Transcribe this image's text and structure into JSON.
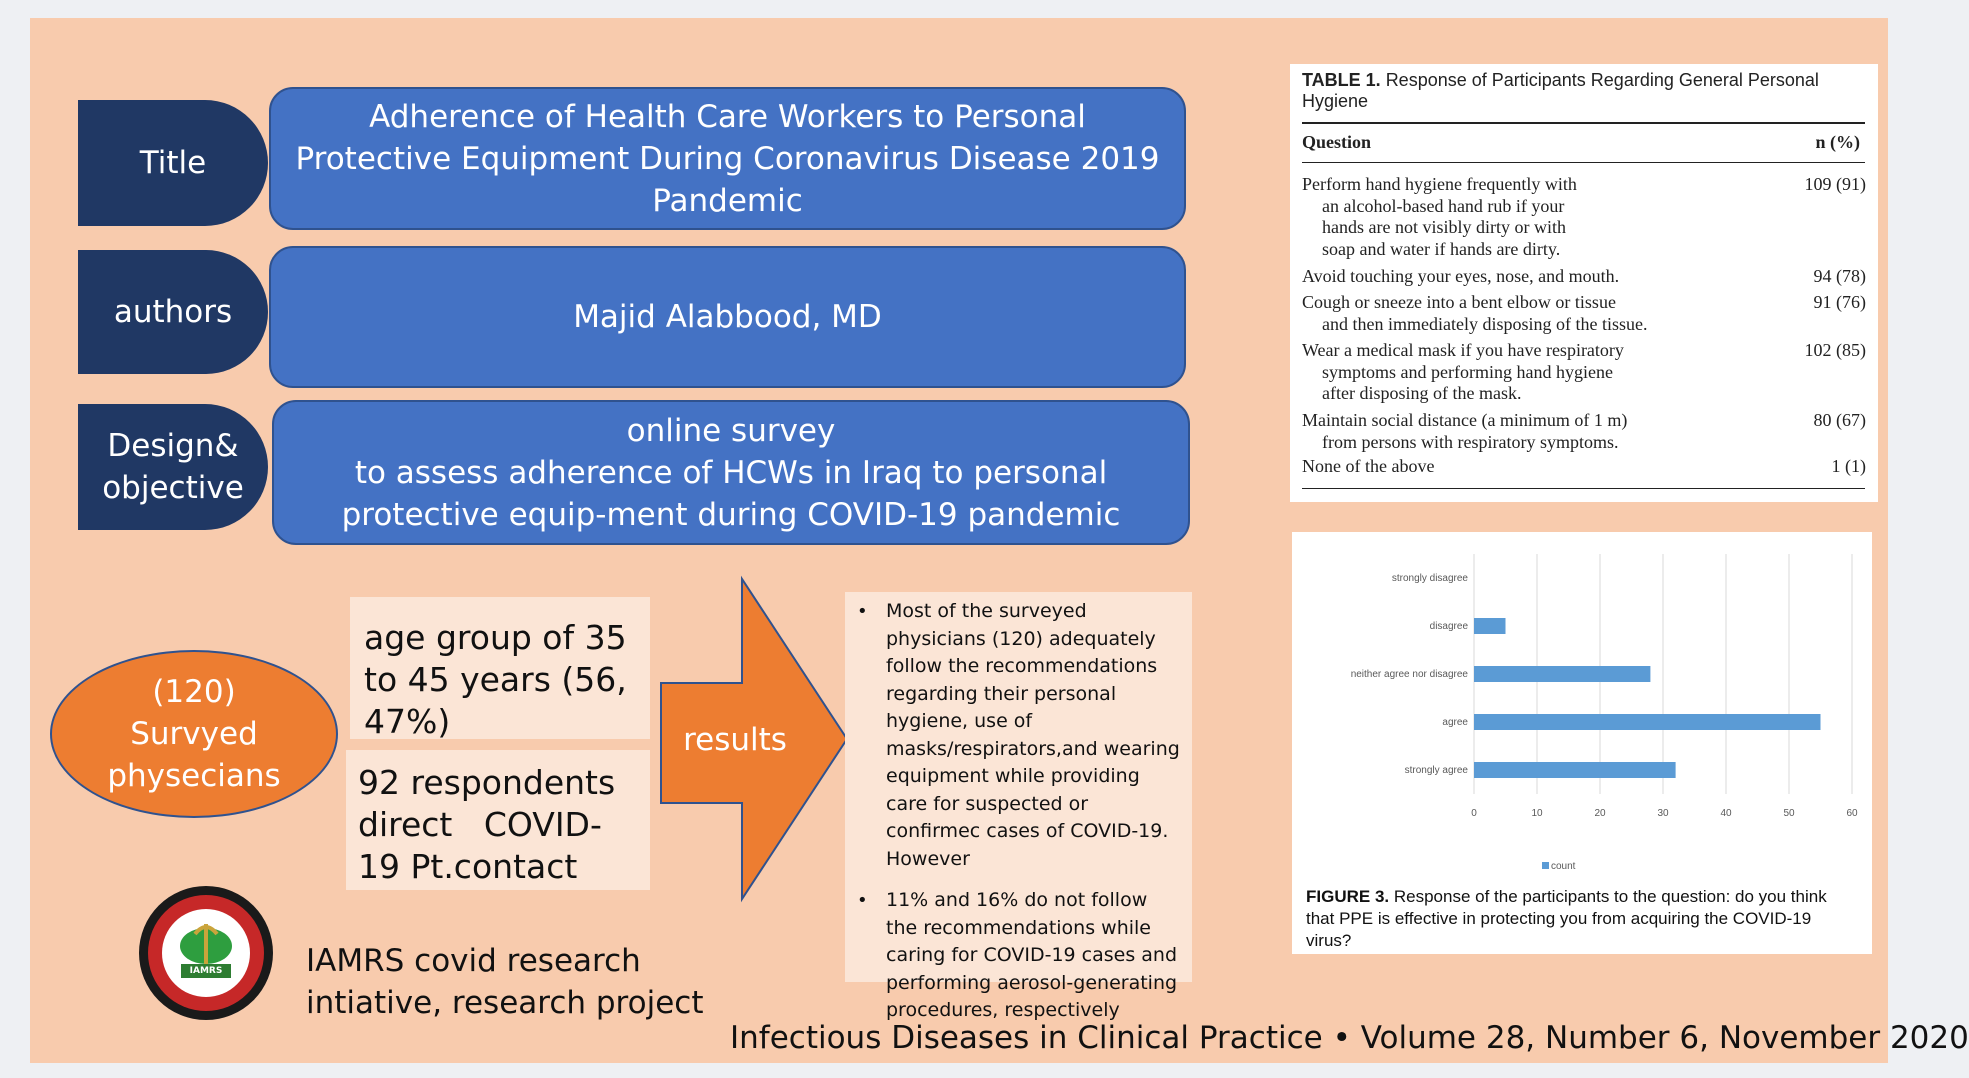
{
  "title_label": "Title",
  "title_text": "Adherence of Health Care Workers to Personal Protective Equipment During Coronavirus Disease 2019 Pandemic",
  "authors_label": "authors",
  "authors_text": "Majid Alabbood, MD",
  "design_label": "Design& objective",
  "design_line1": "online survey",
  "design_line2": "to assess adherence of HCWs in Iraq to personal protective equip-ment during COVID-19 pandemic",
  "ellipse_count": "(120)",
  "ellipse_text": "Survyed physecians",
  "age_box": "age group of 35 to 45 years (56, 47%)",
  "respondents_box": "92 respondents direct   COVID-19 Pt.contact",
  "results_label": "results",
  "results": [
    "Most of the surveyed physicians (120) adequately follow the recommendations regarding their personal hygiene, use of masks/respirators,and wearing equipment while providing care for suspected or confirmec cases of COVID-19. However",
    "11% and 16% do not follow the recommendations while caring for COVID-19 cases and performing aerosol-generating procedures, respectively"
  ],
  "logo_text": "IAMRS",
  "initiative_text": "IAMRS covid research intiative, research project",
  "footer_citation": "Infectious Diseases in Clinical Practice • Volume 28, Number 6, November 2020",
  "table": {
    "caption_bold": "TABLE 1.",
    "caption": "Response of Participants Regarding General Personal Hygiene",
    "col_question": "Question",
    "col_n": "n (%)",
    "rows": [
      {
        "first": "Perform hand hygiene frequently with",
        "rest": [
          "an alcohol-based hand rub if your",
          "hands are not visibly dirty or with",
          "soap and water if hands are dirty."
        ],
        "n": "109 (91)"
      },
      {
        "first": "Avoid touching your eyes, nose, and mouth.",
        "rest": [],
        "n": "94 (78)"
      },
      {
        "first": "Cough or sneeze into a bent elbow or tissue",
        "rest": [
          "and then immediately disposing of the tissue."
        ],
        "n": "91 (76)"
      },
      {
        "first": "Wear a medical mask if you have respiratory",
        "rest": [
          "symptoms and performing hand hygiene",
          "after disposing of the mask."
        ],
        "n": "102 (85)"
      },
      {
        "first": "Maintain social distance (a minimum of 1 m)",
        "rest": [
          "from persons with respiratory symptoms."
        ],
        "n": "80 (67)"
      },
      {
        "first": "None of the above",
        "rest": [],
        "n": "1 (1)"
      }
    ]
  },
  "figure_caption_bold": "FIGURE 3.",
  "figure_caption": "Response of the participants to the question: do you think that PPE is effective in protecting you from acquiring the COVID-19 virus?",
  "colors": {
    "bar": "#5b9bd5",
    "dark_tab": "#203864",
    "blue_box": "#4472c4",
    "orange": "#ed7d31",
    "slide_bg": "#f8cbad"
  },
  "chart_data": {
    "type": "bar",
    "orientation": "horizontal",
    "categories": [
      "strongly disagree",
      "disagree",
      "neither agree nor disagree",
      "agree",
      "strongly agree"
    ],
    "series": [
      {
        "name": "count",
        "values": [
          0,
          5,
          28,
          55,
          32
        ]
      }
    ],
    "xlim": [
      0,
      60
    ],
    "xticks": [
      0,
      10,
      20,
      30,
      40,
      50,
      60
    ],
    "grid": true,
    "legend": "bottom"
  }
}
